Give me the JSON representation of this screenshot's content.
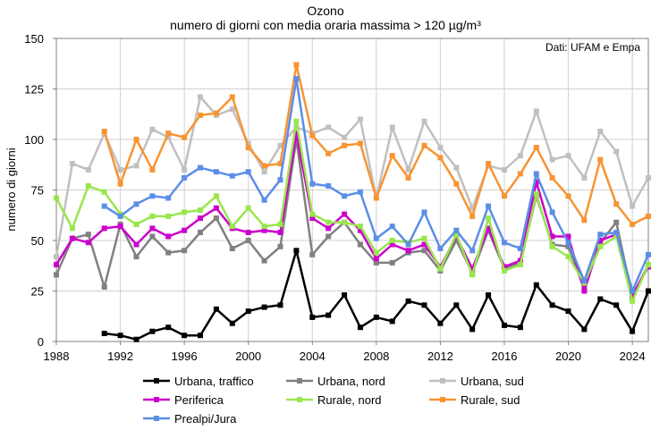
{
  "chart_data": {
    "type": "line",
    "title": "Ozono",
    "subtitle": "numero di giorni con media oraria massima > 120 µg/m³",
    "source_note": "Dati: UFAM e Empa",
    "ylabel": "numero di giorni",
    "xlabel": "",
    "xlim": [
      1988,
      2025
    ],
    "ylim": [
      0,
      150
    ],
    "x_ticks": [
      1988,
      1992,
      1996,
      2000,
      2004,
      2008,
      2012,
      2016,
      2020,
      2024
    ],
    "y_ticks": [
      0,
      25,
      50,
      75,
      100,
      125,
      150
    ],
    "grid": true,
    "legend_position": "bottom",
    "x": [
      1988,
      1989,
      1990,
      1991,
      1992,
      1993,
      1994,
      1995,
      1996,
      1997,
      1998,
      1999,
      2000,
      2001,
      2002,
      2003,
      2004,
      2005,
      2006,
      2007,
      2008,
      2009,
      2010,
      2011,
      2012,
      2013,
      2014,
      2015,
      2016,
      2017,
      2018,
      2019,
      2020,
      2021,
      2022,
      2023,
      2024,
      2025
    ],
    "series": [
      {
        "name": "Urbana, traffico",
        "color": "#000000",
        "values": [
          null,
          null,
          null,
          4,
          3,
          1,
          5,
          7,
          3,
          3,
          16,
          9,
          15,
          17,
          18,
          45,
          12,
          13,
          23,
          7,
          12,
          10,
          20,
          18,
          9,
          18,
          6,
          23,
          8,
          7,
          28,
          18,
          15,
          6,
          21,
          18,
          5,
          25
        ]
      },
      {
        "name": "Urbana, nord",
        "color": "#808080",
        "values": [
          33,
          51,
          53,
          27,
          58,
          42,
          52,
          44,
          45,
          54,
          61,
          46,
          50,
          40,
          47,
          100,
          43,
          52,
          59,
          48,
          39,
          39,
          44,
          45,
          35,
          50,
          34,
          55,
          36,
          39,
          72,
          48,
          47,
          26,
          49,
          59,
          22,
          38
        ]
      },
      {
        "name": "Urbana, sud",
        "color": "#c0c0c0",
        "values": [
          42,
          88,
          85,
          103,
          85,
          87,
          105,
          101,
          85,
          121,
          112,
          115,
          98,
          84,
          97,
          106,
          103,
          106,
          101,
          110,
          71,
          106,
          85,
          109,
          96,
          86,
          66,
          87,
          85,
          92,
          114,
          90,
          92,
          81,
          104,
          94,
          67,
          81
        ]
      },
      {
        "name": "Periferica",
        "color": "#cc00cc",
        "values": [
          38,
          51,
          49,
          56,
          57,
          48,
          56,
          52,
          55,
          61,
          66,
          56,
          54,
          55,
          54,
          103,
          61,
          56,
          63,
          55,
          41,
          48,
          45,
          48,
          37,
          52,
          36,
          56,
          37,
          40,
          79,
          52,
          52,
          25,
          50,
          53,
          23,
          37
        ]
      },
      {
        "name": "Rurale, nord",
        "color": "#99e64d",
        "values": [
          71,
          56,
          77,
          74,
          63,
          58,
          62,
          62,
          64,
          65,
          72,
          57,
          66,
          57,
          58,
          109,
          63,
          59,
          59,
          57,
          44,
          50,
          49,
          51,
          36,
          53,
          33,
          61,
          35,
          38,
          73,
          47,
          42,
          29,
          47,
          52,
          20,
          38
        ]
      },
      {
        "name": "Rurale, sud",
        "color": "#f79433",
        "values": [
          null,
          null,
          null,
          104,
          78,
          100,
          85,
          103,
          101,
          112,
          113,
          121,
          96,
          87,
          88,
          137,
          102,
          93,
          97,
          98,
          71,
          92,
          81,
          97,
          91,
          78,
          62,
          88,
          72,
          83,
          96,
          81,
          72,
          60,
          90,
          68,
          58,
          62
        ]
      },
      {
        "name": "Prealpi/Jura",
        "color": "#5b8ee6",
        "values": [
          null,
          null,
          null,
          67,
          62,
          68,
          72,
          71,
          81,
          86,
          84,
          82,
          84,
          70,
          80,
          130,
          78,
          77,
          72,
          74,
          51,
          57,
          48,
          64,
          46,
          55,
          45,
          67,
          49,
          46,
          83,
          64,
          49,
          30,
          53,
          54,
          25,
          43
        ]
      }
    ]
  }
}
